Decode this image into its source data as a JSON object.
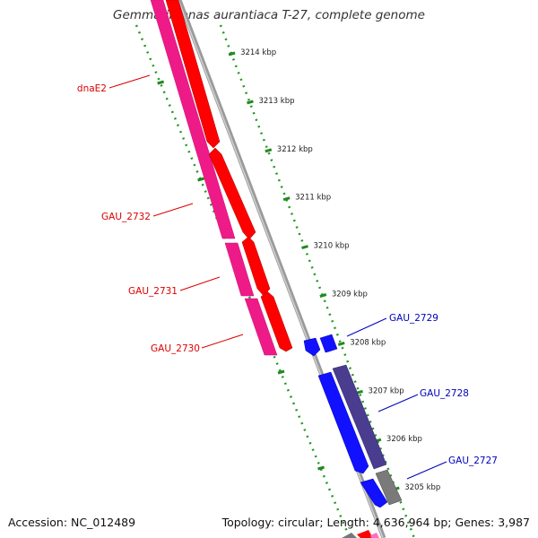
{
  "title": "Gemmatimonas aurantiaca T-27, complete genome",
  "footer": {
    "accession_label": "Accession:",
    "accession": "NC_012489",
    "topology_label": "Topology:",
    "topology": "circular;",
    "length_label": "Length:",
    "length": "4,636,964 bp;",
    "genes_label": "Genes:",
    "genes": "3,987"
  },
  "colors": {
    "forward_gene": "#ff0000",
    "pink_gene": "#ff3399",
    "reverse_gene": "#0000ff",
    "slate_gene": "#4a3d8f",
    "gray_gene": "#808080",
    "backbone": "#808080",
    "ticks": "#228822",
    "left_labels": "#dd0000",
    "right_labels": "#0000bb"
  },
  "ruler": {
    "unit": "kbp",
    "ticks": [
      "3214 kbp",
      "3213 kbp",
      "3212 kbp",
      "3211 kbp",
      "3210 kbp",
      "3209 kbp",
      "3208 kbp",
      "3207 kbp",
      "3206 kbp",
      "3205 kbp"
    ]
  },
  "genes_left": [
    {
      "name": "dnaE2"
    },
    {
      "name": "GAU_2732"
    },
    {
      "name": "GAU_2731"
    },
    {
      "name": "GAU_2730"
    }
  ],
  "genes_right": [
    {
      "name": "GAU_2729"
    },
    {
      "name": "GAU_2728"
    },
    {
      "name": "GAU_2727"
    }
  ]
}
